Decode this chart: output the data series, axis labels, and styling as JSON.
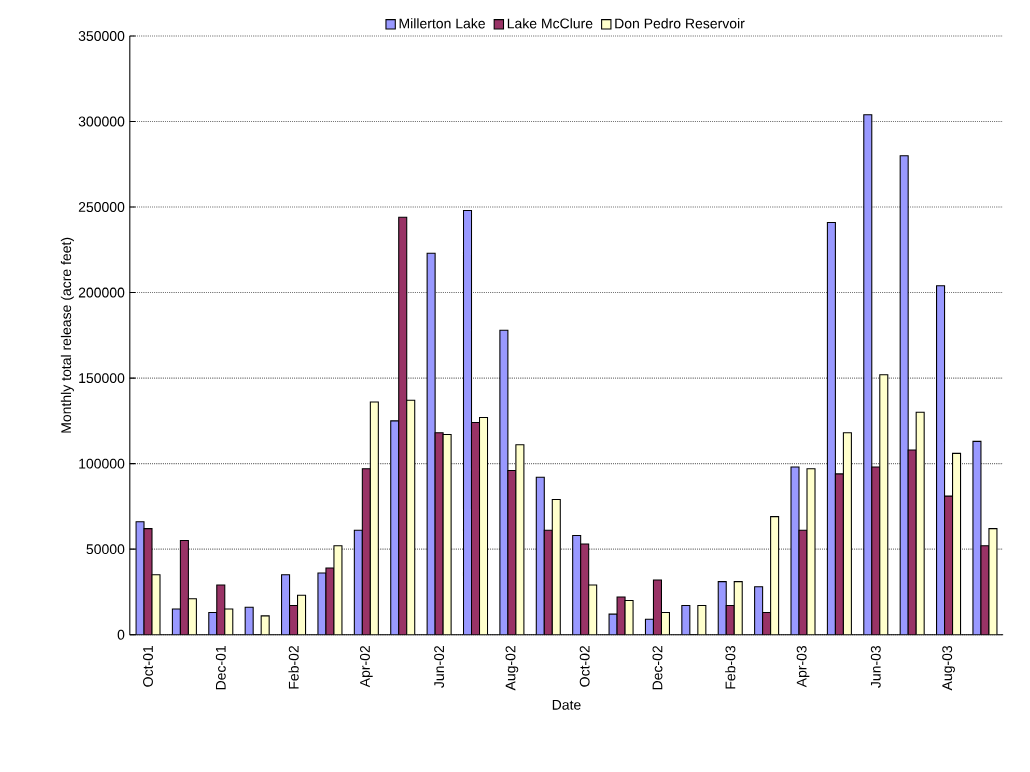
{
  "chart_data": {
    "type": "bar",
    "xlabel": "Date",
    "ylabel": "Monthly total  release (acre feet)",
    "categories": [
      "Oct-01",
      null,
      "Dec-01",
      null,
      "Feb-02",
      null,
      "Apr-02",
      null,
      "Jun-02",
      null,
      "Aug-02",
      null,
      "Oct-02",
      null,
      "Dec-02",
      null,
      "Feb-03",
      null,
      "Apr-03",
      null,
      "Jun-03",
      null,
      "Aug-03",
      null
    ],
    "series": [
      {
        "name": "Millerton Lake",
        "color": "#9999ff",
        "values": [
          66000,
          15000,
          13000,
          16000,
          35000,
          36000,
          61000,
          125000,
          223000,
          248000,
          178000,
          92000,
          58000,
          12000,
          9000,
          17000,
          31000,
          28000,
          98000,
          241000,
          304000,
          280000,
          204000,
          113000
        ]
      },
      {
        "name": "Lake McClure",
        "color": "#993366",
        "values": [
          62000,
          55000,
          29000,
          0,
          17000,
          39000,
          97000,
          244000,
          118000,
          124000,
          96000,
          61000,
          53000,
          22000,
          32000,
          0,
          17000,
          13000,
          61000,
          94000,
          98000,
          108000,
          81000,
          52000
        ]
      },
      {
        "name": "Don Pedro Reservoir",
        "color": "#ffffcc",
        "values": [
          35000,
          21000,
          15000,
          11000,
          23000,
          52000,
          136000,
          137000,
          117000,
          127000,
          111000,
          79000,
          29000,
          20000,
          13000,
          17000,
          31000,
          69000,
          97000,
          118000,
          152000,
          130000,
          106000,
          62000
        ]
      }
    ],
    "ylim": [
      0,
      350000
    ],
    "yticks": [
      0,
      50000,
      100000,
      150000,
      200000,
      250000,
      300000,
      350000
    ],
    "grid": "y",
    "legend": "top"
  }
}
